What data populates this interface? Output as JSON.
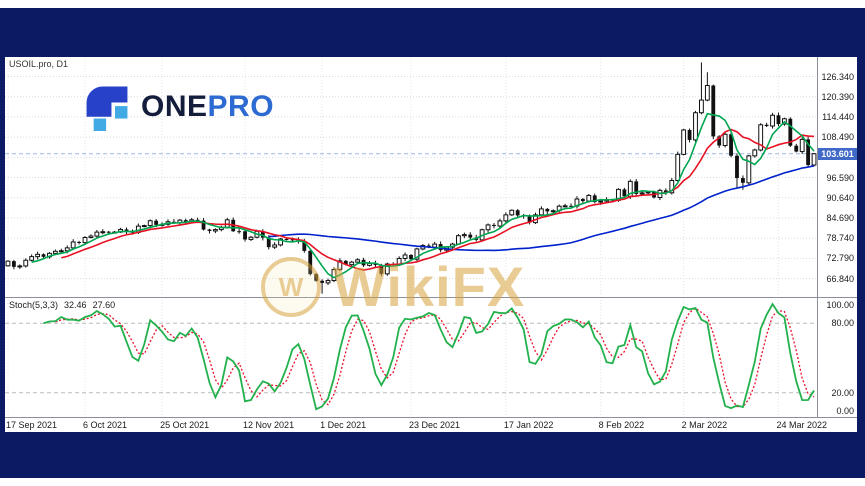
{
  "window": {
    "frame_color": "#0c1a63",
    "background": "#ffffff"
  },
  "header": {
    "symbol_label": "USOIL.pro, D1"
  },
  "logo": {
    "text_one": "ONE",
    "text_pro": "PRO",
    "color_one": "#141e3c",
    "color_pro": "#2d6ad1",
    "mark_dark": "#2742c8",
    "mark_light": "#41aae4"
  },
  "watermark": {
    "text": "WikiFX",
    "coin_letter": "W",
    "color": "#d8a23c"
  },
  "price_axis": {
    "labels": [
      {
        "text": "126.340",
        "value": 126.34
      },
      {
        "text": "120.390",
        "value": 120.39
      },
      {
        "text": "114.440",
        "value": 114.44
      },
      {
        "text": "108.490",
        "value": 108.49
      },
      {
        "text": "96.590",
        "value": 96.59
      },
      {
        "text": "90.640",
        "value": 90.64
      },
      {
        "text": "84.690",
        "value": 84.69
      },
      {
        "text": "78.740",
        "value": 78.74
      },
      {
        "text": "72.790",
        "value": 72.79
      },
      {
        "text": "66.840",
        "value": 66.84
      }
    ],
    "badge": {
      "text": "103.601",
      "value": 103.601,
      "color": "#4169c8"
    }
  },
  "stoch_panel": {
    "name_label": "Stoch(5,3,3)",
    "k_text": "32.46",
    "d_text": "27.60",
    "k_color": "#22b14c",
    "d_color": "#e8112d",
    "level_color": "#bbbbbb",
    "levels": [
      20,
      80
    ],
    "axis_labels": [
      {
        "text": "100.00",
        "value": 100
      },
      {
        "text": "80.00",
        "value": 80
      },
      {
        "text": "20.00",
        "value": 20
      },
      {
        "text": "0.00",
        "value": 0
      }
    ]
  },
  "chart_data": {
    "type": "candlestick",
    "title": "USOIL.pro, D1",
    "symbol": "USOIL.pro",
    "timeframe": "D1",
    "last_price": 103.601,
    "ylim": [
      62.0,
      131.5
    ],
    "grid_prices": [
      126.34,
      120.39,
      114.44,
      108.49,
      102.54,
      96.59,
      90.64,
      84.69,
      78.74,
      72.79,
      66.84
    ],
    "first_open": 70.6,
    "closes": [
      71.97,
      70.29,
      70.56,
      72.23,
      73.3,
      73.98,
      73.25,
      74.26,
      74.88,
      75.03,
      75.88,
      77.62,
      77.43,
      78.93,
      79.35,
      80.52,
      80.64,
      80.46,
      80.52,
      81.31,
      80.64,
      80.44,
      82.28,
      82.44,
      83.87,
      82.66,
      82.81,
      83.57,
      83.22,
      84.05,
      83.6,
      84.15,
      83.91,
      81.27,
      80.86,
      81.27,
      81.93,
      84.15,
      80.79,
      80.76,
      78.36,
      79.01,
      80.76,
      78.89,
      76.1,
      76.75,
      78.5,
      78.39,
      78.36,
      77.8,
      75.0,
      68.15,
      66.18,
      65.57,
      66.26,
      69.49,
      72.05,
      70.94,
      71.67,
      72.36,
      70.73,
      71.29,
      70.86,
      68.23,
      71.12,
      70.87,
      72.76,
      73.79,
      72.55,
      75.57,
      76.56,
      76.08,
      76.99,
      75.21,
      76.08,
      76.99,
      79.46,
      79.78,
      78.9,
      78.23,
      81.22,
      82.64,
      82.31,
      83.82,
      85.6,
      86.96,
      85.43,
      85.14,
      83.31,
      85.6,
      87.35,
      86.61,
      86.82,
      88.15,
      88.26,
      88.2,
      90.27,
      89.66,
      91.32,
      89.36,
      89.66,
      90.07,
      89.88,
      93.1,
      91.07,
      95.46,
      91.76,
      92.07,
      92.35,
      90.71,
      92.81,
      92.1,
      95.72,
      103.41,
      110.6,
      107.67,
      115.68,
      119.4,
      123.7,
      108.7,
      106.02,
      109.33,
      103.01,
      96.44,
      95.04,
      102.98,
      104.7,
      112.12,
      111.76,
      114.93,
      112.34,
      113.9,
      105.96,
      104.24,
      107.82,
      100.28,
      103.6
    ],
    "high_overrides": {
      "117": 130.5,
      "118": 127.6
    },
    "low_overrides": {
      "53": 62.4,
      "123": 93.6,
      "124": 93.0
    },
    "moving_averages": [
      {
        "name": "sma-fast",
        "period": 5,
        "color": "#00a651"
      },
      {
        "name": "sma-mid",
        "period": 10,
        "color": "#e81123"
      },
      {
        "name": "sma-slow",
        "period": 45,
        "color": "#0022cc"
      }
    ],
    "indicator": {
      "name": "Stochastic",
      "params": [
        5,
        3,
        3
      ],
      "k_last": 32.46,
      "d_last": 27.6
    },
    "x_ticks": [
      {
        "label": "17 Sep 2021",
        "index": 0
      },
      {
        "label": "6 Oct 2021",
        "index": 13
      },
      {
        "label": "25 Oct 2021",
        "index": 26
      },
      {
        "label": "12 Nov 2021",
        "index": 40
      },
      {
        "label": "1 Dec 2021",
        "index": 53
      },
      {
        "label": "23 Dec 2021",
        "index": 68
      },
      {
        "label": "17 Jan 2022",
        "index": 84
      },
      {
        "label": "8 Feb 2022",
        "index": 100
      },
      {
        "label": "2 Mar 2022",
        "index": 114
      },
      {
        "label": "24 Mar 2022",
        "index": 130
      }
    ]
  }
}
